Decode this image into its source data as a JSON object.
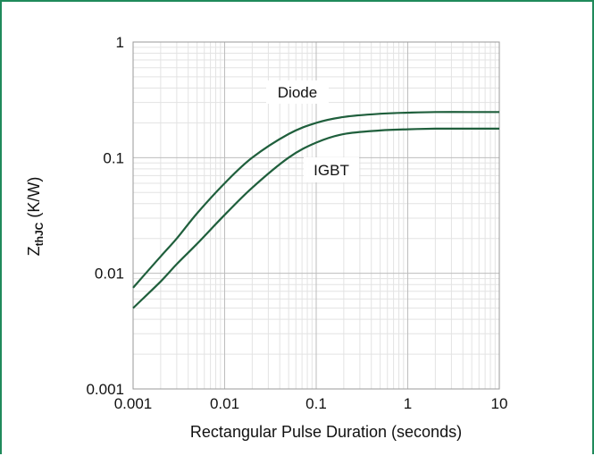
{
  "colors": {
    "frame": "#1f8a5b",
    "curve": "#1f5f3c",
    "grid_major": "#bdbdbd",
    "grid_minor": "#e3e3e3"
  },
  "chart_data": {
    "type": "line",
    "xlabel": "Rectangular Pulse Duration (seconds)",
    "ylabel_main": "Z",
    "ylabel_sub": "thJC",
    "ylabel_unit": " (K/W)",
    "x_scale": "log",
    "y_scale": "log",
    "xlim": [
      0.001,
      10
    ],
    "ylim": [
      0.001,
      1
    ],
    "x_ticks": [
      0.001,
      0.01,
      0.1,
      1,
      10
    ],
    "x_tick_labels": [
      "0.001",
      "0.01",
      "0.1",
      "1",
      "10"
    ],
    "y_ticks": [
      0.001,
      0.01,
      0.1,
      1
    ],
    "y_tick_labels": [
      "0.001",
      "0.01",
      "0.1",
      "1"
    ],
    "grid": true,
    "series": [
      {
        "name": "Diode",
        "x": [
          0.001,
          0.002,
          0.003,
          0.005,
          0.01,
          0.02,
          0.05,
          0.1,
          0.2,
          0.5,
          1,
          2,
          5,
          10
        ],
        "y": [
          0.0075,
          0.014,
          0.02,
          0.033,
          0.06,
          0.1,
          0.16,
          0.2,
          0.225,
          0.24,
          0.245,
          0.248,
          0.248,
          0.248
        ]
      },
      {
        "name": "IGBT",
        "x": [
          0.001,
          0.002,
          0.003,
          0.005,
          0.01,
          0.02,
          0.05,
          0.1,
          0.2,
          0.5,
          1,
          2,
          5,
          10
        ],
        "y": [
          0.005,
          0.0085,
          0.012,
          0.018,
          0.032,
          0.055,
          0.1,
          0.135,
          0.16,
          0.172,
          0.176,
          0.178,
          0.178,
          0.178
        ]
      }
    ]
  }
}
